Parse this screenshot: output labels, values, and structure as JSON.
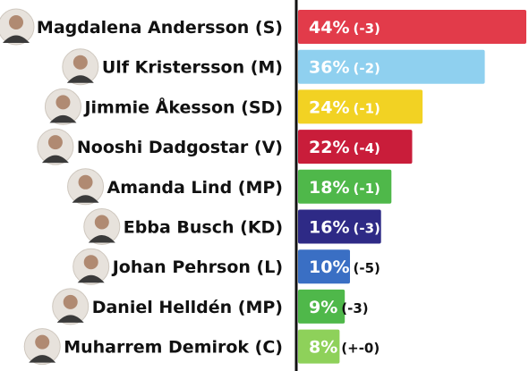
{
  "chart_data": {
    "type": "bar",
    "orientation": "horizontal",
    "grid": false,
    "legend": "none",
    "xlim": [
      0,
      50
    ],
    "categories": [
      "Magdalena Andersson (S)",
      "Ulf Kristersson (M)",
      "Jimmie Åkesson (SD)",
      "Nooshi Dadgostar (V)",
      "Amanda Lind (MP)",
      "Ebba Busch (KD)",
      "Johan Pehrson (L)",
      "Daniel Helldén (MP)",
      "Muharrem Demirok (C)"
    ],
    "values": [
      44,
      36,
      24,
      22,
      18,
      16,
      10,
      9,
      8
    ],
    "value_labels": [
      "44%",
      "36%",
      "24%",
      "22%",
      "18%",
      "16%",
      "10%",
      "9%",
      "8%"
    ],
    "change_labels": [
      "(-3)",
      "(-2)",
      "(-1)",
      "(-4)",
      "(-1)",
      "(-3)",
      "(-5)",
      "(-3)",
      "(+-0)"
    ],
    "colors": [
      "#e23b4a",
      "#8fd0ef",
      "#f2d223",
      "#c91d3a",
      "#4fb84a",
      "#2e2a86",
      "#3a6fc4",
      "#4fb84a",
      "#8ed15a"
    ],
    "portraits": [
      "portrait-icon",
      "portrait-icon",
      "portrait-icon",
      "portrait-icon",
      "portrait-icon",
      "portrait-icon",
      "portrait-icon",
      "portrait-icon",
      "portrait-icon"
    ]
  }
}
